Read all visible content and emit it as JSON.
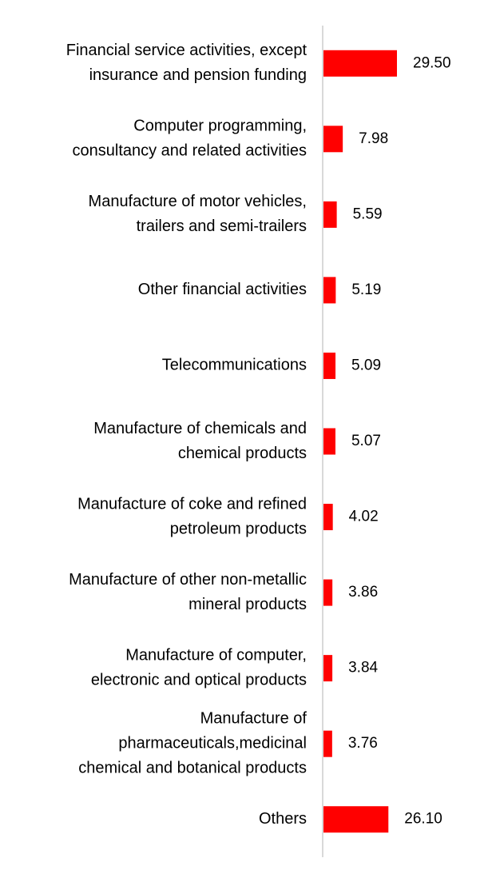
{
  "chart_data": {
    "type": "bar",
    "orientation": "horizontal",
    "title": "",
    "xlabel": "",
    "ylabel": "",
    "xlim": [
      0,
      29.5
    ],
    "grid": false,
    "legend": "none",
    "bar_color": "#ff0000",
    "axis_color": "#d9d9d9",
    "categories": [
      [
        "Financial service activities, except",
        "insurance and pension funding"
      ],
      [
        "Computer programming,",
        "consultancy and related activities"
      ],
      [
        "Manufacture of motor vehicles,",
        "trailers and semi-trailers"
      ],
      [
        "Other financial activities"
      ],
      [
        "Telecommunications"
      ],
      [
        "Manufacture of chemicals and",
        "chemical products"
      ],
      [
        "Manufacture of coke and refined",
        "petroleum products"
      ],
      [
        "Manufacture of other non-metallic",
        "mineral products"
      ],
      [
        "Manufacture of computer,",
        "electronic and optical products"
      ],
      [
        "Manufacture of",
        "pharmaceuticals,medicinal",
        "chemical and botanical products"
      ],
      [
        "Others"
      ]
    ],
    "values": [
      29.5,
      7.98,
      5.59,
      5.19,
      5.09,
      5.07,
      4.02,
      3.86,
      3.84,
      3.76,
      26.1
    ],
    "value_labels": [
      "29.50",
      "7.98",
      "5.59",
      "5.19",
      "5.09",
      "5.07",
      "4.02",
      "3.86",
      "3.84",
      "3.76",
      "26.10"
    ]
  }
}
